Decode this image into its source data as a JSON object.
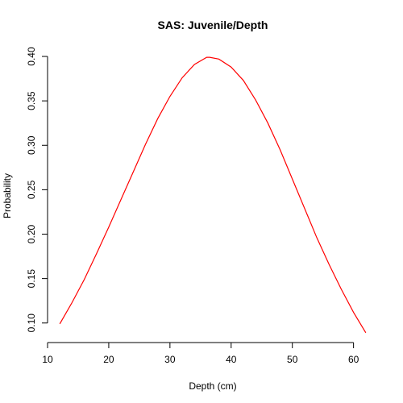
{
  "chart_data": {
    "type": "line",
    "title": "SAS: Juvenile/Depth",
    "xlabel": "Depth (cm)",
    "ylabel": "Probability",
    "xlim": [
      10,
      64
    ],
    "ylim": [
      0.078,
      0.41
    ],
    "x_ticks": [
      10,
      20,
      30,
      40,
      50,
      60
    ],
    "y_ticks": [
      0.1,
      0.15,
      0.2,
      0.25,
      0.3,
      0.35,
      0.4
    ],
    "y_tick_labels": [
      "0.10",
      "0.15",
      "0.20",
      "0.25",
      "0.30",
      "0.35",
      "0.40"
    ],
    "grid": false,
    "legend": "none",
    "series": [
      {
        "color": "#ff0000",
        "x": [
          12,
          14,
          16,
          18,
          20,
          22,
          24,
          26,
          28,
          30,
          32,
          34,
          36,
          36.5,
          38,
          40,
          42,
          44,
          46,
          48,
          50,
          52,
          54,
          56,
          58,
          60,
          62
        ],
        "y": [
          0.099,
          0.123,
          0.149,
          0.178,
          0.208,
          0.239,
          0.27,
          0.301,
          0.33,
          0.355,
          0.376,
          0.391,
          0.399,
          0.399,
          0.397,
          0.388,
          0.373,
          0.351,
          0.325,
          0.295,
          0.262,
          0.229,
          0.196,
          0.166,
          0.138,
          0.112,
          0.089
        ]
      }
    ]
  }
}
